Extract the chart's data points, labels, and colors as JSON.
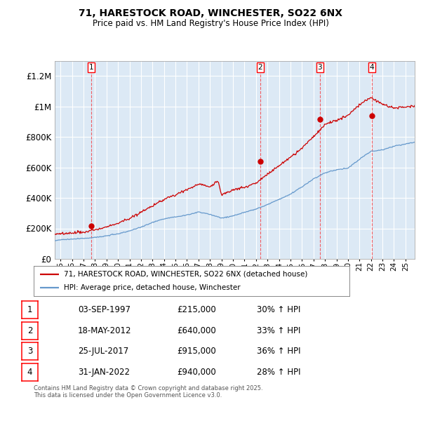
{
  "title": "71, HARESTOCK ROAD, WINCHESTER, SO22 6NX",
  "subtitle": "Price paid vs. HM Land Registry's House Price Index (HPI)",
  "background_color": "#dce9f5",
  "plot_bg_color": "#dce9f5",
  "grid_color": "#ffffff",
  "ylim": [
    0,
    1300000
  ],
  "yticks": [
    0,
    200000,
    400000,
    600000,
    800000,
    1000000,
    1200000
  ],
  "ytick_labels": [
    "£0",
    "£200K",
    "£400K",
    "£600K",
    "£800K",
    "£1M",
    "£1.2M"
  ],
  "transactions": [
    {
      "num": 1,
      "x": 1997.67,
      "price": 215000,
      "label": "03-SEP-1997",
      "amount": "£215,000",
      "hpi": "30% ↑ HPI"
    },
    {
      "num": 2,
      "x": 2012.38,
      "price": 640000,
      "label": "18-MAY-2012",
      "amount": "£640,000",
      "hpi": "33% ↑ HPI"
    },
    {
      "num": 3,
      "x": 2017.56,
      "price": 915000,
      "label": "25-JUL-2017",
      "amount": "£915,000",
      "hpi": "36% ↑ HPI"
    },
    {
      "num": 4,
      "x": 2022.08,
      "price": 940000,
      "label": "31-JAN-2022",
      "amount": "£940,000",
      "hpi": "28% ↑ HPI"
    }
  ],
  "legend_line1": "71, HARESTOCK ROAD, WINCHESTER, SO22 6NX (detached house)",
  "legend_line2": "HPI: Average price, detached house, Winchester",
  "footer": "Contains HM Land Registry data © Crown copyright and database right 2025.\nThis data is licensed under the Open Government Licence v3.0.",
  "hpi_color": "#6699cc",
  "price_color": "#cc0000",
  "xmin": 1994.5,
  "xmax": 2025.8,
  "hpi_seed": 101,
  "price_seed": 202
}
